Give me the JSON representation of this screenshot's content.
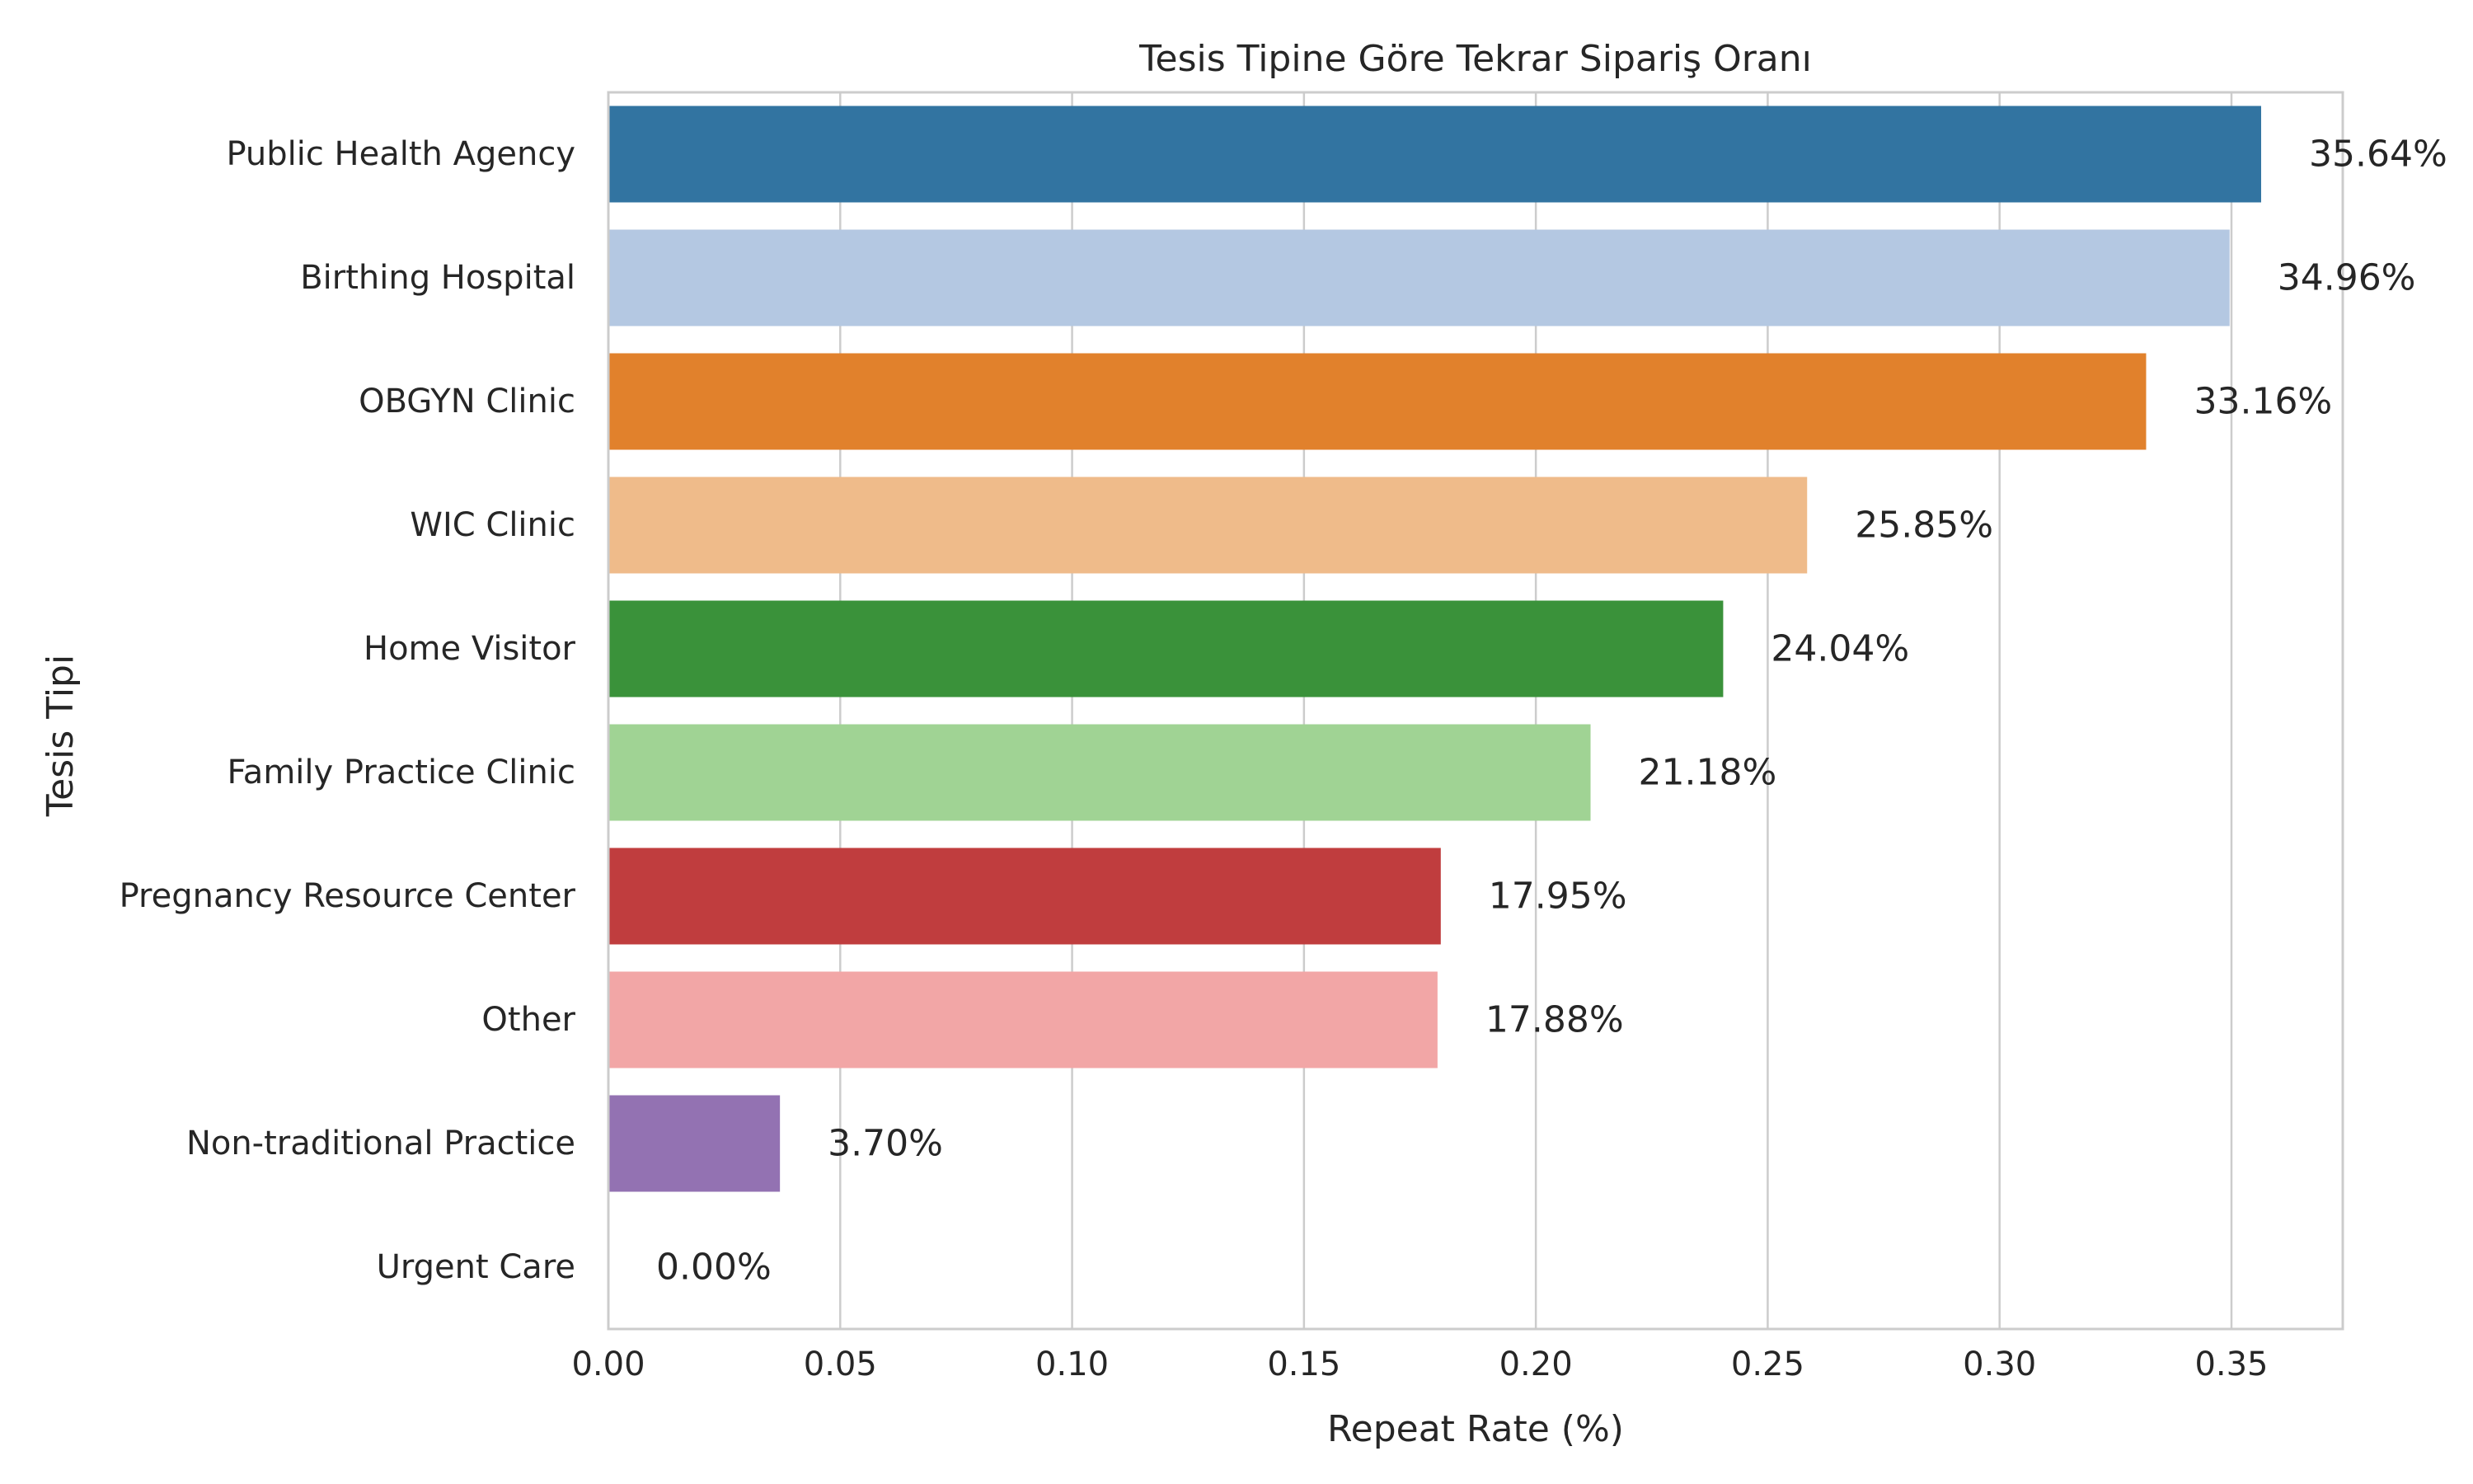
{
  "chart_data": {
    "type": "bar",
    "orientation": "horizontal",
    "title": "Tesis Tipine Göre Tekrar Sipariş Oranı",
    "xlabel": "Repeat Rate (%)",
    "ylabel": "Tesis Tipi",
    "xlim": [
      0,
      0.374
    ],
    "xticks": [
      "0.00",
      "0.05",
      "0.10",
      "0.15",
      "0.20",
      "0.25",
      "0.30",
      "0.35"
    ],
    "grid": "x",
    "legend": "none",
    "categories": [
      "Public Health Agency",
      "Birthing Hospital",
      "OBGYN Clinic",
      "WIC Clinic",
      "Home Visitor",
      "Family Practice Clinic",
      "Pregnancy Resource Center",
      "Other",
      "Non-traditional Practice",
      "Urgent Care"
    ],
    "values": [
      0.3564,
      0.3496,
      0.3316,
      0.2585,
      0.2404,
      0.2118,
      0.1795,
      0.1788,
      0.037,
      0.0
    ],
    "data_labels": [
      "35.64%",
      "34.96%",
      "33.16%",
      "25.85%",
      "24.04%",
      "21.18%",
      "17.95%",
      "17.88%",
      "3.70%",
      "0.00%"
    ],
    "colors": [
      "#3274a1",
      "#b4c8e2",
      "#e1812c",
      "#efbb8a",
      "#3a923a",
      "#a0d394",
      "#c03d3e",
      "#f2a6a6",
      "#9372b2",
      "#c6b0d5"
    ]
  }
}
